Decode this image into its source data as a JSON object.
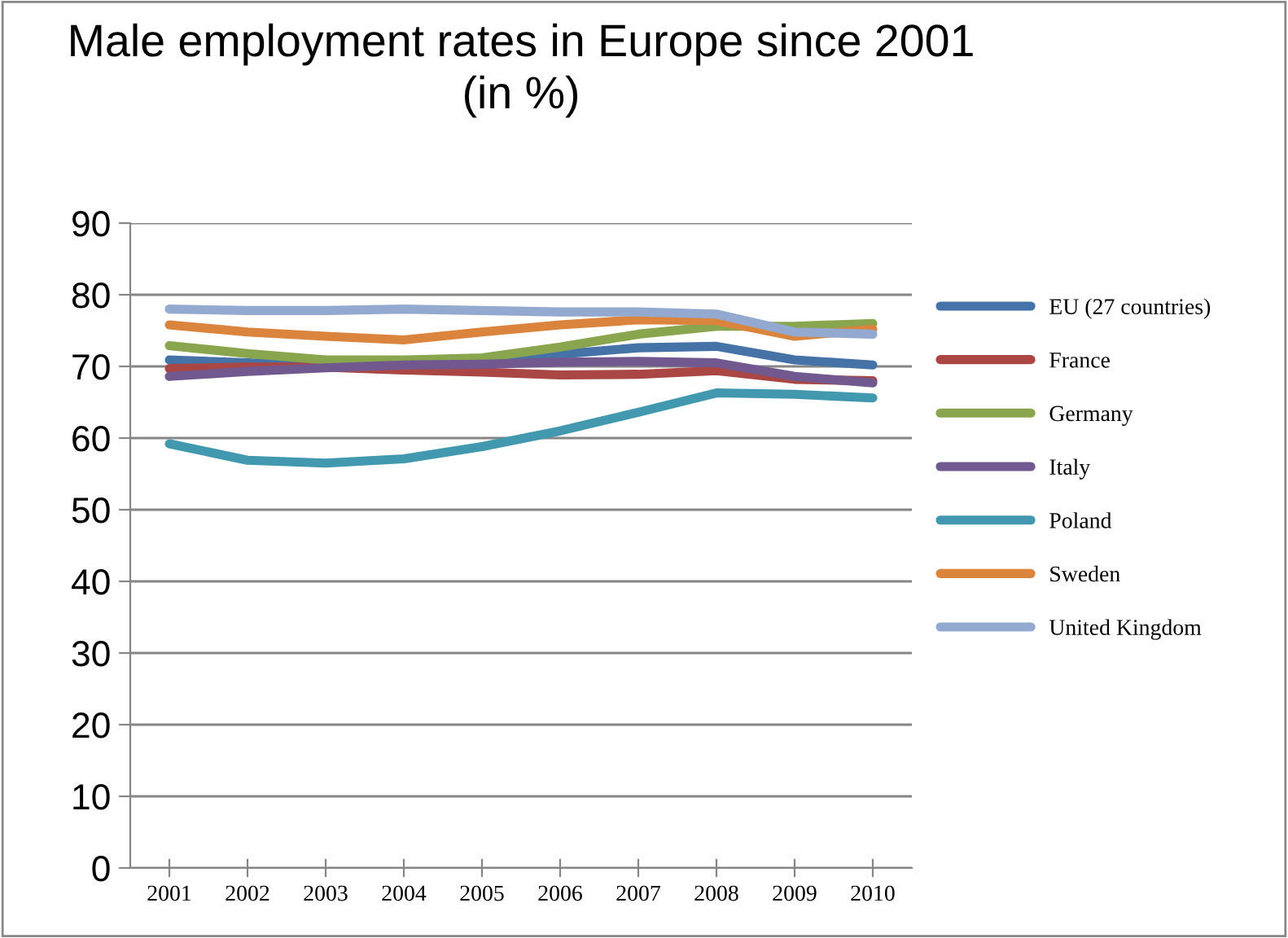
{
  "chart_data": {
    "type": "line",
    "title": "Male employment rates in Europe since 2001\n(in %)",
    "categories": [
      "2001",
      "2002",
      "2003",
      "2004",
      "2005",
      "2006",
      "2007",
      "2008",
      "2009",
      "2010"
    ],
    "series": [
      {
        "name": "EU (27 countries)",
        "color": "#4572a7",
        "values": [
          70.9,
          70.5,
          70.1,
          70.1,
          70.8,
          71.7,
          72.6,
          72.8,
          70.9,
          70.2
        ]
      },
      {
        "name": "France",
        "color": "#aa4643",
        "values": [
          69.7,
          69.9,
          69.9,
          69.5,
          69.2,
          68.8,
          68.9,
          69.4,
          68.2,
          68.0
        ]
      },
      {
        "name": "Germany",
        "color": "#89a54e",
        "values": [
          72.9,
          71.8,
          70.9,
          70.9,
          71.2,
          72.7,
          74.5,
          75.6,
          75.6,
          76.0
        ]
      },
      {
        "name": "Italy",
        "color": "#71588f",
        "values": [
          68.6,
          69.3,
          69.8,
          70.2,
          70.3,
          70.6,
          70.7,
          70.5,
          68.6,
          67.7
        ]
      },
      {
        "name": "Poland",
        "color": "#4198af",
        "values": [
          59.2,
          56.9,
          56.5,
          57.1,
          58.8,
          61.0,
          63.6,
          66.3,
          66.1,
          65.6
        ]
      },
      {
        "name": "Sweden",
        "color": "#db843d",
        "values": [
          75.8,
          74.8,
          74.2,
          73.7,
          74.8,
          75.8,
          76.5,
          76.4,
          74.2,
          75.2
        ]
      },
      {
        "name": "United Kingdom",
        "color": "#93a9cf",
        "values": [
          78.0,
          77.8,
          77.8,
          78.0,
          77.8,
          77.6,
          77.6,
          77.3,
          74.8,
          74.5
        ]
      }
    ],
    "ylim": [
      0,
      90
    ],
    "yticks": [
      0,
      10,
      20,
      30,
      40,
      50,
      60,
      70,
      80,
      90
    ],
    "grid": "y",
    "legend": "right",
    "marker": "none",
    "line_style": "solid"
  }
}
